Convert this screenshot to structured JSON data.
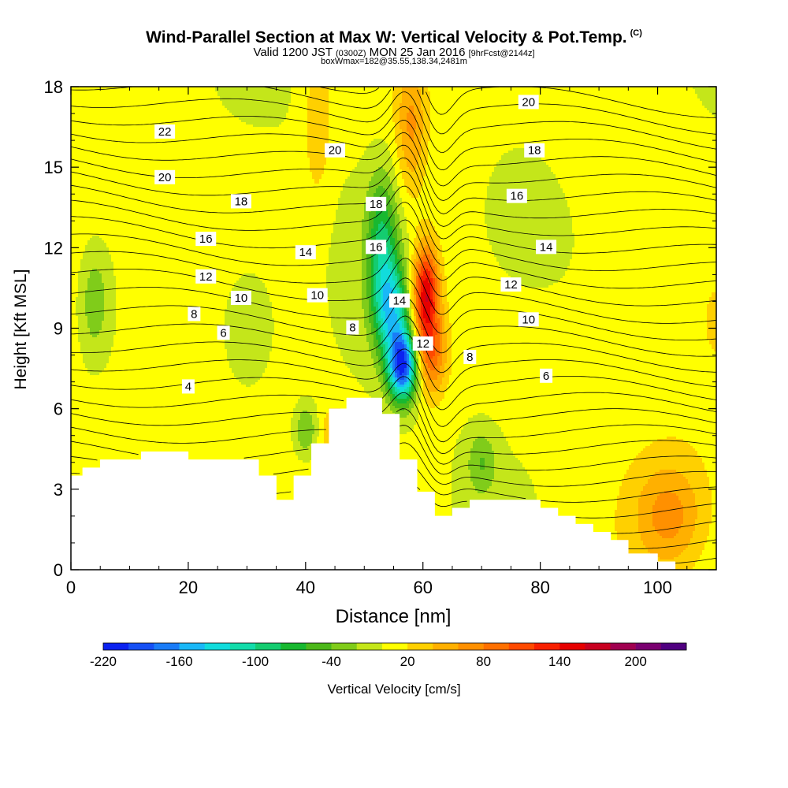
{
  "header": {
    "title": "Wind-Parallel Section at Max W: Vertical Velocity & Pot.Temp.",
    "copyright_mark": "(C)",
    "valid_prefix": "Valid 1200 JST",
    "valid_utc": "(0300Z)",
    "valid_date": "MON 25 Jan 2016",
    "forecast": "[9hrFcst@2144z]",
    "box_info": "boxWmax=182@35.55,138.34,2481m"
  },
  "chart_data": {
    "type": "heatmap",
    "xlabel": "Distance [nm]",
    "ylabel": "Height [Kft MSL]",
    "xlim": [
      0,
      110
    ],
    "ylim": [
      0,
      18
    ],
    "x_ticks": [
      0,
      20,
      40,
      60,
      80,
      100
    ],
    "y_ticks": [
      0,
      3,
      6,
      9,
      12,
      15,
      18
    ],
    "colorbar": {
      "label": "Vertical Velocity [cm/s]",
      "tick_labels": [
        "-220",
        "-160",
        "-100",
        "-40",
        "20",
        "80",
        "140",
        "200"
      ],
      "levels": [
        -220,
        -200,
        -180,
        -160,
        -140,
        -120,
        -100,
        -80,
        -60,
        -40,
        -20,
        0,
        20,
        40,
        60,
        80,
        100,
        120,
        140,
        160,
        180,
        200,
        220
      ],
      "colors": [
        "#0b22f0",
        "#1650f5",
        "#1a7cf7",
        "#1ab8f7",
        "#11dcdc",
        "#12dcaa",
        "#14cc70",
        "#18b830",
        "#4cb81a",
        "#80cc1a",
        "#c4e61a",
        "#ffff00",
        "#ffd000",
        "#ffb000",
        "#ff9000",
        "#ff7000",
        "#ff4a00",
        "#f82000",
        "#e60000",
        "#c80020",
        "#a00050",
        "#7a0070",
        "#500080"
      ]
    },
    "terrain_profile_kft": [
      [
        0,
        3.5
      ],
      [
        2,
        3.5
      ],
      [
        2,
        3.8
      ],
      [
        5,
        3.8
      ],
      [
        5,
        4.1
      ],
      [
        12,
        4.1
      ],
      [
        12,
        4.4
      ],
      [
        20,
        4.4
      ],
      [
        20,
        4.1
      ],
      [
        32,
        4.1
      ],
      [
        32,
        3.5
      ],
      [
        35,
        3.5
      ],
      [
        35,
        2.6
      ],
      [
        38,
        2.6
      ],
      [
        38,
        3.5
      ],
      [
        41,
        3.5
      ],
      [
        41,
        4.7
      ],
      [
        44,
        4.7
      ],
      [
        44,
        6.0
      ],
      [
        47,
        6.0
      ],
      [
        47,
        6.4
      ],
      [
        53,
        6.4
      ],
      [
        53,
        5.8
      ],
      [
        56,
        5.8
      ],
      [
        56,
        4.1
      ],
      [
        59,
        4.1
      ],
      [
        59,
        2.9
      ],
      [
        62,
        2.9
      ],
      [
        62,
        2.0
      ],
      [
        65,
        2.0
      ],
      [
        65,
        2.3
      ],
      [
        68,
        2.3
      ],
      [
        68,
        2.6
      ],
      [
        80,
        2.6
      ],
      [
        80,
        2.3
      ],
      [
        83,
        2.3
      ],
      [
        83,
        2.0
      ],
      [
        86,
        2.0
      ],
      [
        86,
        1.7
      ],
      [
        89,
        1.7
      ],
      [
        89,
        1.4
      ],
      [
        92,
        1.4
      ],
      [
        92,
        1.1
      ],
      [
        95,
        1.1
      ],
      [
        95,
        0.6
      ],
      [
        100,
        0.6
      ],
      [
        100,
        0.3
      ],
      [
        103,
        0.3
      ],
      [
        103,
        0.0
      ],
      [
        110,
        0.0
      ]
    ],
    "wind_features": [
      {
        "x": 56.5,
        "y": 7.6,
        "w": -200,
        "sx": 2.4,
        "sy": 1.3
      },
      {
        "x": 54.5,
        "y": 9.7,
        "w": -120,
        "sx": 2.8,
        "sy": 1.8
      },
      {
        "x": 53.0,
        "y": 12.2,
        "w": -80,
        "sx": 2.6,
        "sy": 2.5
      },
      {
        "x": 60.5,
        "y": 10.3,
        "w": 150,
        "sx": 2.2,
        "sy": 1.8
      },
      {
        "x": 61.5,
        "y": 8.0,
        "w": 80,
        "sx": 2.6,
        "sy": 1.6
      },
      {
        "x": 58.0,
        "y": 16.5,
        "w": 55,
        "sx": 2.5,
        "sy": 2.5
      },
      {
        "x": 42.0,
        "y": 16.5,
        "w": 30,
        "sx": 2.5,
        "sy": 3.0
      },
      {
        "x": 45.0,
        "y": 5.2,
        "w": 40,
        "sx": 2.0,
        "sy": 0.8
      },
      {
        "x": 40.0,
        "y": 5.2,
        "w": -50,
        "sx": 2.0,
        "sy": 1.0
      },
      {
        "x": 4.0,
        "y": 10.0,
        "w": -40,
        "sx": 2.5,
        "sy": 2.0
      },
      {
        "x": 102.0,
        "y": 2.0,
        "w": 60,
        "sx": 6.0,
        "sy": 2.0
      },
      {
        "x": 70.0,
        "y": 4.0,
        "w": -40,
        "sx": 2.5,
        "sy": 1.2
      },
      {
        "x": 77.0,
        "y": 13.0,
        "w": -30,
        "sx": 8.0,
        "sy": 3.0
      },
      {
        "x": 30.0,
        "y": 9.0,
        "w": -30,
        "sx": 6.0,
        "sy": 3.0
      }
    ],
    "theta_contour_labels": [
      {
        "text": "22",
        "x": 16,
        "y": 16.3
      },
      {
        "text": "20",
        "x": 16,
        "y": 14.6
      },
      {
        "text": "18",
        "x": 29,
        "y": 13.7
      },
      {
        "text": "16",
        "x": 23,
        "y": 12.3
      },
      {
        "text": "14",
        "x": 40,
        "y": 11.8
      },
      {
        "text": "12",
        "x": 23,
        "y": 10.9
      },
      {
        "text": "10",
        "x": 29,
        "y": 10.1
      },
      {
        "text": "10",
        "x": 42,
        "y": 10.2
      },
      {
        "text": "8",
        "x": 21,
        "y": 9.5
      },
      {
        "text": "6",
        "x": 26,
        "y": 8.8
      },
      {
        "text": "8",
        "x": 48,
        "y": 9.0
      },
      {
        "text": "4",
        "x": 20,
        "y": 6.8
      },
      {
        "text": "20",
        "x": 45,
        "y": 15.6
      },
      {
        "text": "18",
        "x": 52,
        "y": 13.6
      },
      {
        "text": "16",
        "x": 52,
        "y": 12.0
      },
      {
        "text": "14",
        "x": 56,
        "y": 10.0
      },
      {
        "text": "12",
        "x": 60,
        "y": 8.4
      },
      {
        "text": "8",
        "x": 68,
        "y": 7.9
      },
      {
        "text": "20",
        "x": 78,
        "y": 17.4
      },
      {
        "text": "18",
        "x": 79,
        "y": 15.6
      },
      {
        "text": "16",
        "x": 76,
        "y": 13.9
      },
      {
        "text": "14",
        "x": 81,
        "y": 12.0
      },
      {
        "text": "12",
        "x": 75,
        "y": 10.6
      },
      {
        "text": "10",
        "x": 78,
        "y": 9.3
      },
      {
        "text": "6",
        "x": 81,
        "y": 7.2
      }
    ]
  }
}
